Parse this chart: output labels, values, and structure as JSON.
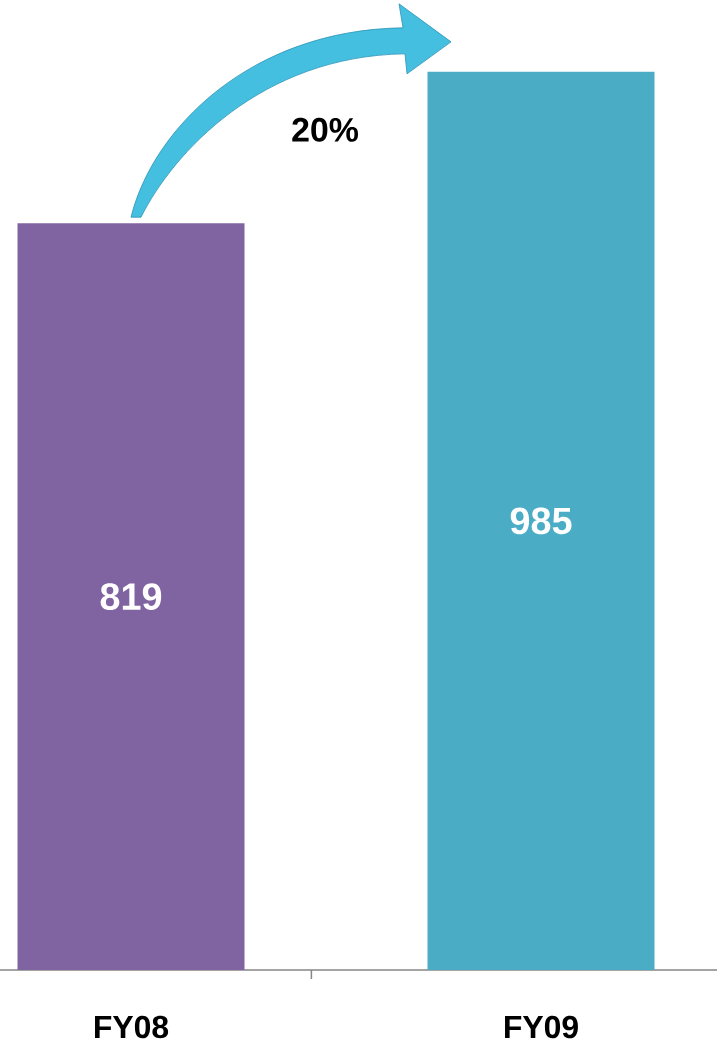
{
  "chart_data": {
    "type": "bar",
    "categories": [
      "FY08",
      "FY09"
    ],
    "values": [
      819,
      985
    ],
    "colors": [
      "#8064a2",
      "#4bacc6"
    ],
    "data_labels": true,
    "annotations": [
      "20%"
    ]
  }
}
